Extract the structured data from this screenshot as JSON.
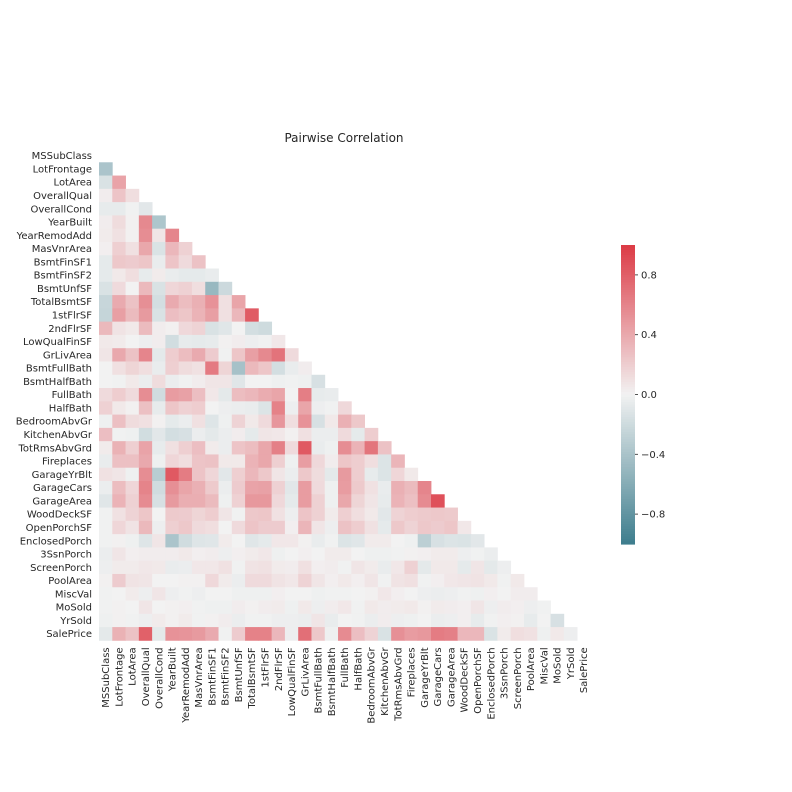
{
  "chart_data": {
    "type": "heatmap",
    "title": "Pairwise Correlation",
    "mask": "upper-triangle-and-diagonal",
    "variables": [
      "MSSubClass",
      "LotFrontage",
      "LotArea",
      "OverallQual",
      "OverallCond",
      "YearBuilt",
      "YearRemodAdd",
      "MasVnrArea",
      "BsmtFinSF1",
      "BsmtFinSF2",
      "BsmtUnfSF",
      "TotalBsmtSF",
      "1stFlrSF",
      "2ndFlrSF",
      "LowQualFinSF",
      "GrLivArea",
      "BsmtFullBath",
      "BsmtHalfBath",
      "FullBath",
      "HalfBath",
      "BedroomAbvGr",
      "KitchenAbvGr",
      "TotRmsAbvGrd",
      "Fireplaces",
      "GarageYrBlt",
      "GarageCars",
      "GarageArea",
      "WoodDeckSF",
      "OpenPorchSF",
      "EnclosedPorch",
      "3SsnPorch",
      "ScreenPorch",
      "PoolArea",
      "MiscVal",
      "MoSold",
      "YrSold",
      "SalePrice"
    ],
    "rows": [
      [],
      [
        -0.39
      ],
      [
        -0.14,
        0.43
      ],
      [
        0.03,
        0.25,
        0.11
      ],
      [
        -0.06,
        -0.06,
        -0.01,
        -0.09
      ],
      [
        0.03,
        0.12,
        0.01,
        0.57,
        -0.38
      ],
      [
        0.04,
        0.09,
        0.01,
        0.55,
        0.07,
        0.59
      ],
      [
        0.02,
        0.19,
        0.1,
        0.41,
        -0.13,
        0.32,
        0.18
      ],
      [
        -0.07,
        0.23,
        0.21,
        0.24,
        -0.05,
        0.25,
        0.13,
        0.26
      ],
      [
        -0.07,
        0.05,
        0.11,
        -0.06,
        0.04,
        -0.05,
        -0.07,
        -0.07,
        -0.05
      ],
      [
        -0.14,
        0.13,
        -0.0,
        0.31,
        -0.14,
        0.15,
        0.18,
        0.11,
        -0.5,
        -0.21
      ],
      [
        -0.24,
        0.39,
        0.26,
        0.54,
        -0.17,
        0.39,
        0.29,
        0.36,
        0.52,
        0.1,
        0.42
      ],
      [
        -0.25,
        0.45,
        0.3,
        0.48,
        -0.14,
        0.28,
        0.24,
        0.34,
        0.45,
        0.1,
        0.32,
        0.82
      ],
      [
        0.31,
        0.08,
        0.05,
        0.3,
        0.03,
        0.01,
        0.14,
        0.17,
        -0.14,
        -0.1,
        0.0,
        -0.17,
        -0.2
      ],
      [
        0.05,
        0.04,
        0.0,
        -0.03,
        0.03,
        -0.18,
        -0.06,
        -0.07,
        -0.06,
        0.01,
        0.03,
        -0.03,
        -0.01,
        0.06
      ],
      [
        0.07,
        0.4,
        0.26,
        0.59,
        -0.08,
        0.2,
        0.29,
        0.39,
        0.21,
        -0.01,
        0.24,
        0.45,
        0.57,
        0.69,
        0.13
      ],
      [
        0.0,
        0.1,
        0.16,
        0.11,
        -0.05,
        0.19,
        0.12,
        0.09,
        0.65,
        0.16,
        -0.42,
        0.31,
        0.24,
        -0.17,
        -0.05,
        0.03
      ],
      [
        -0.0,
        -0.01,
        0.05,
        -0.04,
        0.12,
        -0.04,
        -0.01,
        0.03,
        0.07,
        0.07,
        -0.1,
        -0.0,
        0.0,
        -0.02,
        -0.01,
        -0.02,
        -0.15
      ],
      [
        0.13,
        0.2,
        0.13,
        0.55,
        -0.19,
        0.47,
        0.44,
        0.28,
        0.06,
        -0.08,
        0.29,
        0.32,
        0.38,
        0.42,
        -0.0,
        0.63,
        -0.06,
        -0.05
      ],
      [
        0.18,
        0.05,
        0.01,
        0.27,
        -0.06,
        0.24,
        0.18,
        0.2,
        0.0,
        -0.03,
        -0.04,
        -0.05,
        -0.12,
        0.61,
        -0.03,
        0.42,
        -0.03,
        -0.01,
        0.14
      ],
      [
        -0.02,
        0.27,
        0.12,
        0.1,
        0.01,
        -0.07,
        -0.04,
        0.1,
        -0.11,
        -0.02,
        0.17,
        0.05,
        0.13,
        0.5,
        0.11,
        0.52,
        -0.15,
        0.05,
        0.36,
        0.23
      ],
      [
        0.28,
        -0.01,
        -0.02,
        -0.18,
        -0.09,
        -0.17,
        -0.15,
        -0.04,
        -0.08,
        -0.04,
        0.03,
        -0.07,
        0.07,
        0.06,
        0.01,
        0.1,
        -0.04,
        -0.04,
        0.13,
        -0.07,
        0.2
      ],
      [
        0.04,
        0.35,
        0.19,
        0.43,
        -0.06,
        0.1,
        0.19,
        0.28,
        0.04,
        -0.04,
        0.25,
        0.29,
        0.41,
        0.62,
        0.13,
        0.83,
        -0.05,
        -0.02,
        0.55,
        0.34,
        0.68,
        0.26
      ],
      [
        -0.05,
        0.27,
        0.27,
        0.4,
        -0.02,
        0.15,
        0.11,
        0.25,
        0.26,
        0.05,
        0.05,
        0.34,
        0.41,
        0.19,
        -0.02,
        0.46,
        0.14,
        0.03,
        0.24,
        0.2,
        0.11,
        -0.12,
        0.33
      ],
      [
        0.09,
        0.07,
        -0.02,
        0.55,
        -0.32,
        0.83,
        0.64,
        0.25,
        0.15,
        -0.09,
        0.19,
        0.32,
        0.23,
        0.07,
        -0.04,
        0.23,
        0.12,
        -0.08,
        0.48,
        0.2,
        -0.06,
        -0.12,
        0.15,
        0.05
      ],
      [
        -0.04,
        0.29,
        0.15,
        0.6,
        -0.19,
        0.54,
        0.42,
        0.36,
        0.22,
        -0.04,
        0.21,
        0.43,
        0.44,
        0.18,
        -0.09,
        0.47,
        0.13,
        -0.02,
        0.47,
        0.22,
        0.09,
        -0.05,
        0.36,
        0.3,
        0.59
      ],
      [
        -0.1,
        0.34,
        0.18,
        0.56,
        -0.15,
        0.48,
        0.37,
        0.37,
        0.3,
        -0.02,
        0.18,
        0.49,
        0.49,
        0.14,
        -0.07,
        0.47,
        0.18,
        -0.02,
        0.41,
        0.16,
        0.07,
        -0.06,
        0.34,
        0.27,
        0.56,
        0.88
      ],
      [
        -0.01,
        0.09,
        0.17,
        0.24,
        -0.0,
        0.22,
        0.21,
        0.16,
        0.2,
        0.07,
        -0.01,
        0.23,
        0.24,
        0.09,
        -0.03,
        0.25,
        0.18,
        0.04,
        0.19,
        0.11,
        0.05,
        -0.09,
        0.17,
        0.2,
        0.22,
        0.23,
        0.22
      ],
      [
        -0.01,
        0.15,
        0.08,
        0.31,
        -0.03,
        0.19,
        0.23,
        0.13,
        0.11,
        0.0,
        0.13,
        0.25,
        0.21,
        0.21,
        0.02,
        0.33,
        0.07,
        -0.03,
        0.26,
        0.2,
        0.09,
        -0.07,
        0.23,
        0.17,
        0.23,
        0.21,
        0.24,
        0.06
      ],
      [
        -0.01,
        0.01,
        -0.02,
        -0.11,
        0.07,
        -0.39,
        -0.19,
        -0.11,
        -0.1,
        0.04,
        -0.0,
        -0.1,
        -0.07,
        0.06,
        0.06,
        0.01,
        -0.05,
        -0.01,
        -0.12,
        -0.1,
        0.04,
        0.04,
        0.0,
        -0.02,
        -0.3,
        -0.15,
        -0.12,
        -0.13,
        -0.09
      ],
      [
        -0.04,
        0.07,
        0.02,
        0.03,
        0.03,
        0.03,
        0.05,
        0.02,
        0.03,
        -0.03,
        0.02,
        0.04,
        0.06,
        -0.02,
        -0.0,
        0.02,
        -0.0,
        0.04,
        0.04,
        -0.0,
        -0.02,
        -0.02,
        -0.01,
        0.01,
        0.02,
        0.04,
        0.04,
        -0.03,
        -0.01,
        -0.04
      ],
      [
        -0.03,
        0.04,
        0.04,
        0.06,
        0.05,
        -0.05,
        -0.04,
        0.06,
        0.06,
        0.09,
        -0.01,
        0.08,
        0.09,
        0.04,
        0.03,
        0.1,
        0.02,
        0.03,
        -0.01,
        0.07,
        0.04,
        -0.05,
        0.06,
        0.18,
        -0.08,
        0.05,
        0.05,
        -0.07,
        0.07,
        -0.08,
        -0.03
      ],
      [
        0.01,
        0.21,
        0.08,
        0.07,
        -0.0,
        0.0,
        0.01,
        0.01,
        0.14,
        0.04,
        -0.04,
        0.13,
        0.13,
        0.08,
        0.06,
        0.17,
        0.07,
        0.02,
        0.05,
        0.02,
        0.07,
        -0.01,
        0.08,
        0.1,
        -0.01,
        0.02,
        0.06,
        0.07,
        0.08,
        0.05,
        -0.01,
        0.05
      ],
      [
        -0.01,
        0.0,
        0.04,
        -0.03,
        0.07,
        -0.03,
        -0.01,
        -0.03,
        0.0,
        0.0,
        -0.02,
        -0.02,
        -0.02,
        0.02,
        -0.0,
        -0.0,
        -0.02,
        -0.01,
        -0.01,
        0.0,
        0.01,
        0.06,
        0.02,
        0.0,
        -0.03,
        -0.04,
        -0.03,
        -0.01,
        -0.02,
        0.02,
        0.0,
        0.03,
        0.03
      ],
      [
        -0.01,
        0.01,
        0.0,
        0.07,
        -0.0,
        0.01,
        0.02,
        -0.01,
        -0.02,
        -0.02,
        0.03,
        0.01,
        0.03,
        0.04,
        -0.02,
        0.05,
        -0.03,
        0.03,
        0.06,
        -0.01,
        0.05,
        0.03,
        0.04,
        0.05,
        0.01,
        0.04,
        0.03,
        0.02,
        0.07,
        -0.03,
        0.03,
        0.02,
        -0.03,
        -0.01
      ],
      [
        -0.02,
        0.01,
        -0.01,
        -0.03,
        0.04,
        0.01,
        0.04,
        -0.01,
        0.01,
        0.03,
        -0.04,
        -0.01,
        -0.01,
        -0.03,
        -0.03,
        -0.04,
        0.07,
        -0.05,
        -0.0,
        -0.01,
        -0.04,
        0.03,
        -0.03,
        -0.02,
        -0.0,
        -0.04,
        -0.03,
        0.02,
        -0.06,
        -0.01,
        0.02,
        0.01,
        -0.06,
        0.0,
        -0.15
      ],
      [
        -0.08,
        0.35,
        0.26,
        0.79,
        -0.08,
        0.52,
        0.51,
        0.48,
        0.39,
        -0.01,
        0.21,
        0.61,
        0.61,
        0.32,
        -0.03,
        0.71,
        0.23,
        -0.02,
        0.56,
        0.28,
        0.17,
        -0.14,
        0.53,
        0.47,
        0.49,
        0.64,
        0.62,
        0.32,
        0.32,
        -0.13,
        0.04,
        0.11,
        0.09,
        -0.02,
        0.05,
        -0.03
      ]
    ],
    "colorbar": {
      "range": [
        -1,
        1
      ],
      "ticks": [
        "0.8",
        "0.4",
        "0.0",
        "−0.4",
        "−0.8"
      ],
      "tick_values": [
        0.8,
        0.4,
        0.0,
        -0.4,
        -0.8
      ]
    },
    "colors": {
      "negative": "#3d7d8d",
      "neutral": "#f2f2f2",
      "positive": "#dc3a45"
    },
    "grid": false
  }
}
